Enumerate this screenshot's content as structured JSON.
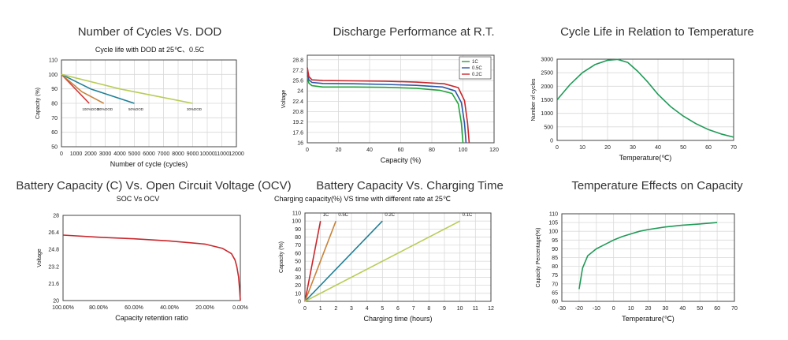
{
  "chart_data": [
    {
      "type": "line",
      "title": "Number of Cycles Vs. DOD",
      "subtitle": "Cycle life with DOD at 25℃、0.5C",
      "xlabel": "Number of cycle (cycles)",
      "ylabel": "Capacity (%)",
      "xlim": [
        0,
        12000
      ],
      "ylim": [
        50,
        110
      ],
      "xticks": [
        0,
        1000,
        2000,
        3000,
        4000,
        5000,
        6000,
        7000,
        8000,
        9000,
        10000,
        11000,
        12000
      ],
      "yticks": [
        50,
        60,
        70,
        80,
        90,
        100,
        110
      ],
      "grid": true,
      "series": [
        {
          "name": "100%DOD",
          "color": "#d33a3a",
          "x": [
            0,
            1900
          ],
          "y": [
            100,
            80
          ]
        },
        {
          "name": "80%DOD",
          "color": "#c8833a",
          "x": [
            0,
            1400,
            2900
          ],
          "y": [
            100,
            88,
            80
          ]
        },
        {
          "name": "50%DOD",
          "color": "#1f7f96",
          "x": [
            0,
            2000,
            5000
          ],
          "y": [
            100,
            90,
            80
          ]
        },
        {
          "name": "30%DOD",
          "color": "#b9cc55",
          "x": [
            0,
            4000,
            9000
          ],
          "y": [
            100,
            90,
            80
          ]
        }
      ]
    },
    {
      "type": "line",
      "title": "Discharge Performance at R.T.",
      "xlabel": "Capacity (%)",
      "ylabel": "Voltage",
      "xlim": [
        0,
        120
      ],
      "ylim": [
        16,
        29.5
      ],
      "xticks": [
        0,
        20,
        40,
        60,
        80,
        100,
        120
      ],
      "yticks": [
        16,
        17.6,
        19.2,
        20.8,
        22.4,
        24,
        25.6,
        27.2,
        28.8
      ],
      "grid": true,
      "legend": "top-right",
      "series": [
        {
          "name": "1C",
          "color": "#22a33a",
          "x": [
            0,
            1,
            3,
            10,
            30,
            50,
            70,
            85,
            93,
            97,
            99,
            100
          ],
          "y": [
            26.2,
            25.2,
            24.8,
            24.6,
            24.6,
            24.55,
            24.4,
            24.1,
            23.6,
            22,
            19,
            16
          ]
        },
        {
          "name": "0.5C",
          "color": "#2a57a8",
          "x": [
            0,
            1,
            3,
            10,
            30,
            50,
            70,
            87,
            95,
            99,
            101,
            102
          ],
          "y": [
            26.8,
            25.7,
            25.3,
            25.15,
            25.1,
            25.0,
            24.85,
            24.6,
            24.0,
            22.2,
            19,
            16
          ]
        },
        {
          "name": "0.2C",
          "color": "#c9272c",
          "x": [
            0,
            1,
            3,
            10,
            30,
            50,
            70,
            88,
            97,
            101,
            103,
            104
          ],
          "y": [
            27.6,
            26.2,
            25.7,
            25.6,
            25.55,
            25.5,
            25.35,
            25.1,
            24.5,
            22.5,
            19,
            16
          ]
        }
      ]
    },
    {
      "type": "line",
      "title": "Cycle Life in Relation to Temperature",
      "xlabel": "Temperature(℃)",
      "ylabel": "Number of cycles",
      "xlim": [
        0,
        70
      ],
      "ylim": [
        0,
        3000
      ],
      "xticks": [
        0,
        10,
        20,
        30,
        40,
        50,
        60,
        70
      ],
      "yticks": [
        0,
        500,
        1000,
        1500,
        2000,
        2500,
        3000
      ],
      "grid": true,
      "series": [
        {
          "name": "",
          "color": "#1f9a57",
          "x": [
            0,
            5,
            10,
            15,
            20,
            24,
            28,
            32,
            36,
            40,
            45,
            50,
            55,
            60,
            65,
            70
          ],
          "y": [
            1500,
            2050,
            2500,
            2800,
            2960,
            2990,
            2880,
            2550,
            2150,
            1700,
            1250,
            900,
            620,
            400,
            240,
            120
          ]
        }
      ]
    },
    {
      "type": "line",
      "title": "Battery Capacity (C) Vs. Open Circuit Voltage (OCV)",
      "subtitle": "SOC Vs OCV",
      "xlabel": "Capacity retention ratio",
      "ylabel": "Voltage",
      "xlim": [
        100,
        0
      ],
      "ylim": [
        20,
        28
      ],
      "xticks": [
        100,
        80,
        60,
        40,
        20,
        0
      ],
      "xtick_labels": [
        "100.00%",
        "80.00%",
        "60.00%",
        "40.00%",
        "20.00%",
        "0.00%"
      ],
      "yticks": [
        20,
        21.6,
        23.2,
        24.8,
        26.4,
        28
      ],
      "grid": false,
      "series": [
        {
          "name": "",
          "color": "#c9272c",
          "x": [
            100,
            80,
            60,
            40,
            20,
            10,
            5,
            3,
            2,
            1,
            0.5,
            0
          ],
          "y": [
            26.15,
            25.95,
            25.8,
            25.6,
            25.3,
            24.9,
            24.4,
            23.8,
            23.2,
            22.2,
            21.2,
            20
          ]
        }
      ]
    },
    {
      "type": "line",
      "title": "Battery Capacity Vs. Charging Time",
      "subtitle": "Charging capacity(%) VS time with different rate at 25℃",
      "xlabel": "Charging time (hours)",
      "ylabel": "Capacity (%)",
      "xlim": [
        0,
        12
      ],
      "ylim": [
        0,
        110
      ],
      "xticks": [
        0,
        1,
        2,
        3,
        4,
        5,
        6,
        7,
        8,
        9,
        10,
        11,
        12
      ],
      "yticks": [
        0,
        10,
        20,
        30,
        40,
        50,
        60,
        70,
        80,
        90,
        100,
        110
      ],
      "grid": true,
      "series": [
        {
          "name": "1C",
          "color": "#c9272c",
          "x": [
            0,
            1
          ],
          "y": [
            0,
            100
          ]
        },
        {
          "name": "0.5C",
          "color": "#c8833a",
          "x": [
            0,
            2
          ],
          "y": [
            0,
            100
          ]
        },
        {
          "name": "0.2C",
          "color": "#1f7f96",
          "x": [
            0,
            5
          ],
          "y": [
            0,
            100
          ]
        },
        {
          "name": "0.1C",
          "color": "#b9cc55",
          "x": [
            0,
            10
          ],
          "y": [
            0,
            100
          ]
        }
      ]
    },
    {
      "type": "line",
      "title": "Temperature Effects on Capacity",
      "xlabel": "Temperature(℃)",
      "ylabel": "Capacity Percentage(%)",
      "xlim": [
        -30,
        70
      ],
      "ylim": [
        60,
        110
      ],
      "xticks": [
        -30,
        -20,
        -10,
        0,
        10,
        20,
        30,
        40,
        50,
        60,
        70
      ],
      "yticks": [
        60,
        65,
        70,
        75,
        80,
        85,
        90,
        95,
        100,
        105,
        110
      ],
      "grid": true,
      "series": [
        {
          "name": "",
          "color": "#1f9a57",
          "x": [
            -20,
            -18,
            -15,
            -10,
            -5,
            0,
            5,
            10,
            15,
            20,
            30,
            40,
            50,
            60
          ],
          "y": [
            67,
            79,
            86,
            90,
            92.5,
            95,
            97,
            98.5,
            100,
            101,
            102.5,
            103.5,
            104.2,
            105
          ]
        }
      ]
    }
  ]
}
